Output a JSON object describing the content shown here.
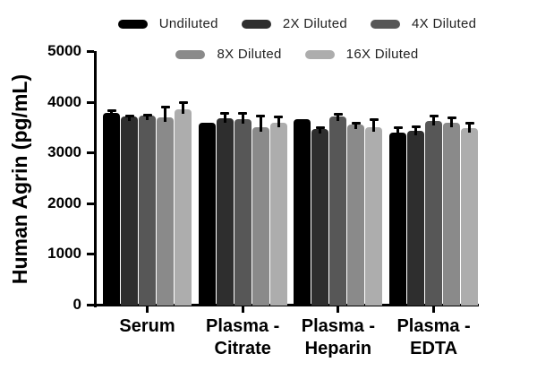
{
  "chart_data": {
    "type": "bar",
    "title": "",
    "xlabel": "",
    "ylabel": "Human Agrin (pg/mL)",
    "ylim": [
      0,
      5000
    ],
    "yticks": [
      0,
      1000,
      2000,
      3000,
      4000,
      5000
    ],
    "grid": false,
    "legend_position": "top",
    "legend_rows": [
      [
        0,
        1,
        2
      ],
      [
        3,
        4
      ]
    ],
    "background_color": "#ffffff",
    "axis_color": "#000000",
    "categories": [
      "Serum",
      "Plasma -\nCitrate",
      "Plasma -\nHeparin",
      "Plasma -\nEDTA"
    ],
    "series": [
      {
        "name": "Undiluted",
        "color": "#000000",
        "values": [
          3780,
          3580,
          3660,
          3390
        ],
        "errors": [
          50,
          0,
          0,
          110
        ]
      },
      {
        "name": "2X Diluted",
        "color": "#2e2e2e",
        "values": [
          3710,
          3680,
          3460,
          3420
        ],
        "errors": [
          25,
          105,
          40,
          90
        ]
      },
      {
        "name": "4X Diluted",
        "color": "#575757",
        "values": [
          3730,
          3650,
          3710,
          3620
        ],
        "errors": [
          20,
          135,
          60,
          100
        ]
      },
      {
        "name": "8X Diluted",
        "color": "#8a8a8a",
        "values": [
          3690,
          3490,
          3550,
          3590
        ],
        "errors": [
          220,
          245,
          30,
          95
        ]
      },
      {
        "name": "16X Diluted",
        "color": "#adadad",
        "values": [
          3850,
          3580,
          3490,
          3480
        ],
        "errors": [
          140,
          135,
          165,
          100
        ]
      }
    ]
  }
}
